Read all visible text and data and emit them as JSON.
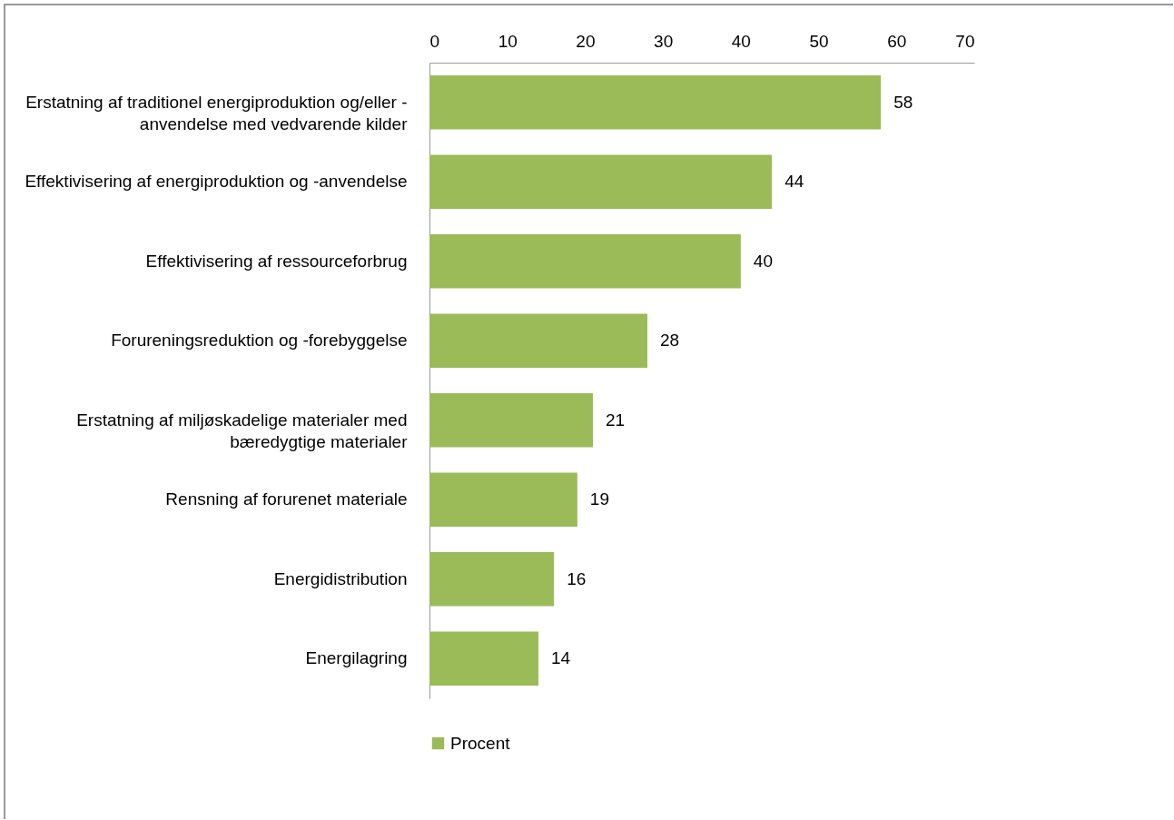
{
  "chart_data": {
    "type": "bar",
    "orientation": "horizontal",
    "categories": [
      "Erstatning af traditionel energiproduktion og/eller -\nanvendelse med vedvarende kilder",
      "Effektivisering af energiproduktion og -anvendelse",
      "Effektivisering af ressourceforbrug",
      "Forureningsreduktion og -forebyggelse",
      "Erstatning af miljøskadelige materialer med\nbæredygtige materialer",
      "Rensning af forurenet materiale",
      "Energidistribution",
      "Energilagring"
    ],
    "series": [
      {
        "name": "Procent",
        "color": "#9bbb59",
        "values": [
          58,
          44,
          40,
          28,
          21,
          19,
          16,
          14
        ]
      }
    ],
    "xlim": [
      0,
      70
    ],
    "xticks": [
      0,
      10,
      20,
      30,
      40,
      50,
      60,
      70
    ],
    "grid": false,
    "legend": "bottom",
    "data_labels": true
  }
}
